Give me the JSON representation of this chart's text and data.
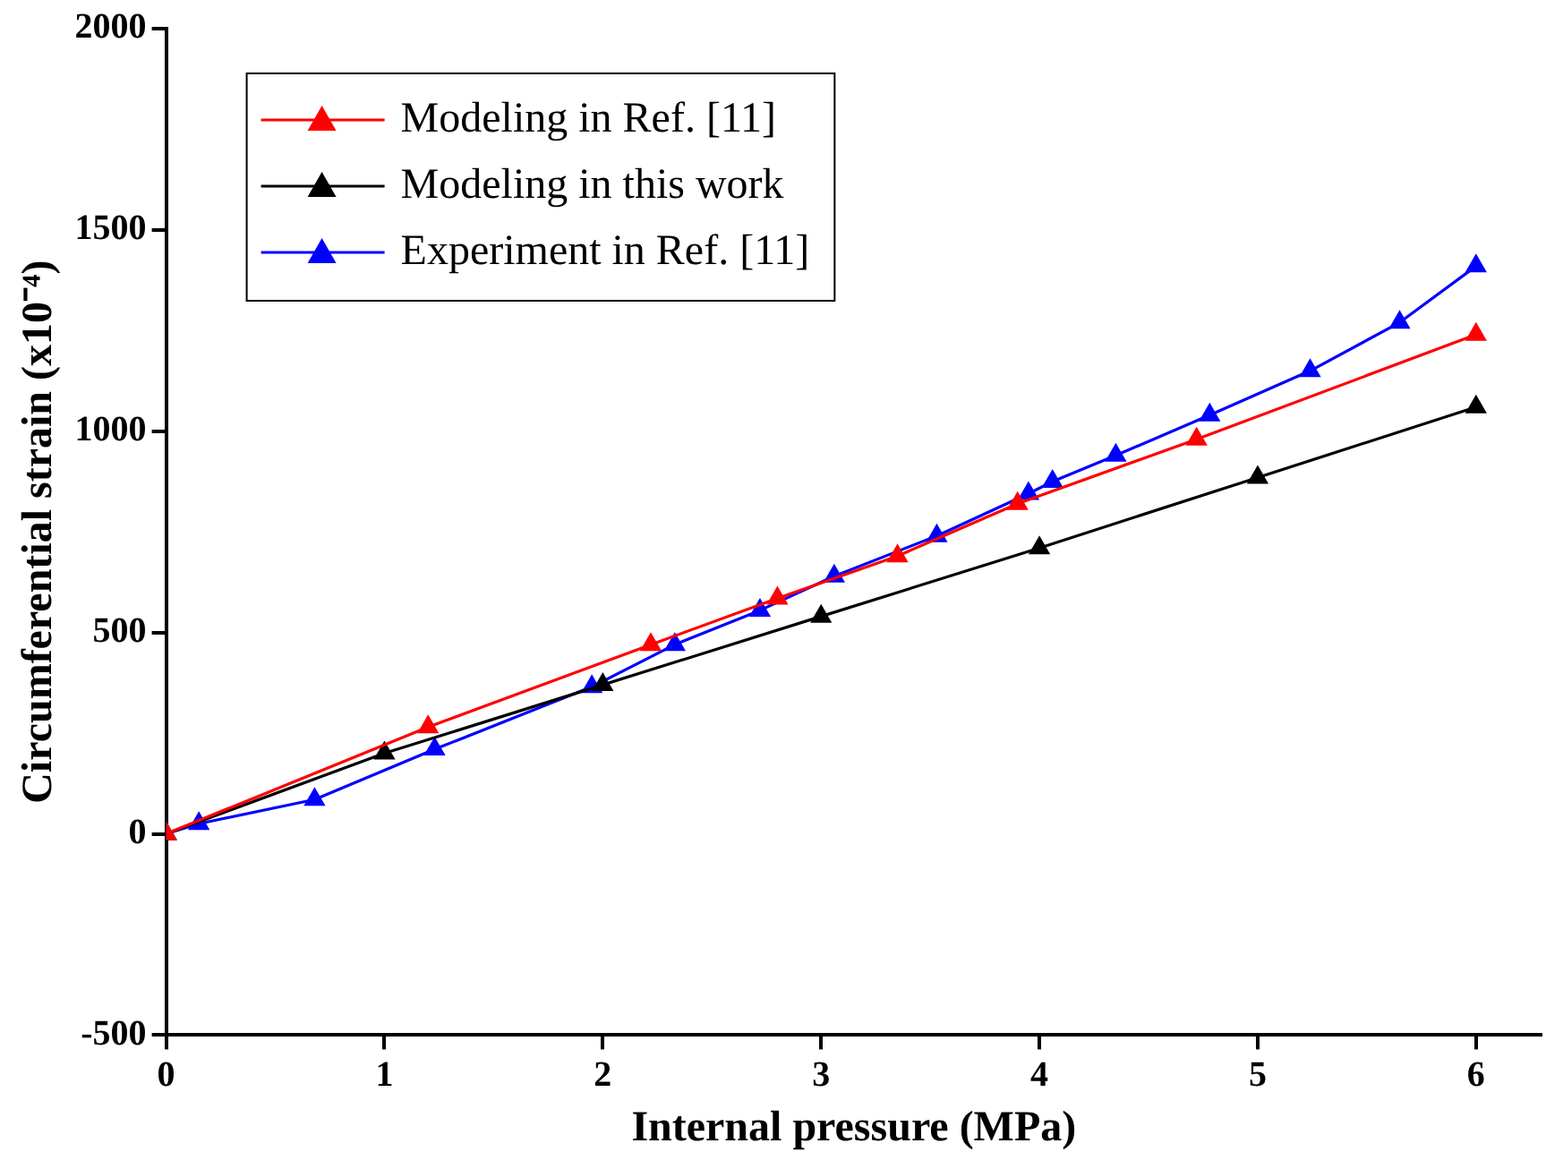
{
  "chart_data": {
    "type": "line",
    "xlabel": "Internal pressure (MPa)",
    "ylabel": "Circumferential strain (x10⁻⁴)",
    "xlim": [
      0,
      6.3
    ],
    "xticks": [
      0,
      1,
      2,
      3,
      4,
      5,
      6
    ],
    "ylim": [
      -500,
      2000
    ],
    "yticks": [
      -500,
      0,
      500,
      1000,
      1500,
      2000
    ],
    "grid": false,
    "legend": "top left",
    "marker": "triangle",
    "line_style": "solid",
    "series": [
      {
        "name": "Modeling in Ref. [11]",
        "color": "#ff0000",
        "x": [
          0,
          1.2,
          2.22,
          2.8,
          3.35,
          3.9,
          4.72,
          6
        ],
        "values": [
          0,
          265,
          470,
          585,
          690,
          820,
          980,
          1240
        ]
      },
      {
        "name": "Modeling in this work",
        "color": "#000000",
        "x": [
          0,
          1,
          2,
          3,
          4,
          5,
          6
        ],
        "values": [
          0,
          200,
          370,
          540,
          710,
          885,
          1060
        ]
      },
      {
        "name": "Experiment in Ref. [11]",
        "color": "#0000ff",
        "x": [
          0,
          0.15,
          0.68,
          1.23,
          1.95,
          2.33,
          2.72,
          3.06,
          3.53,
          3.95,
          4.06,
          4.35,
          4.78,
          5.24,
          5.65,
          6
        ],
        "values": [
          0,
          25,
          85,
          210,
          365,
          470,
          555,
          640,
          740,
          845,
          875,
          940,
          1040,
          1150,
          1270,
          1410
        ]
      }
    ]
  }
}
